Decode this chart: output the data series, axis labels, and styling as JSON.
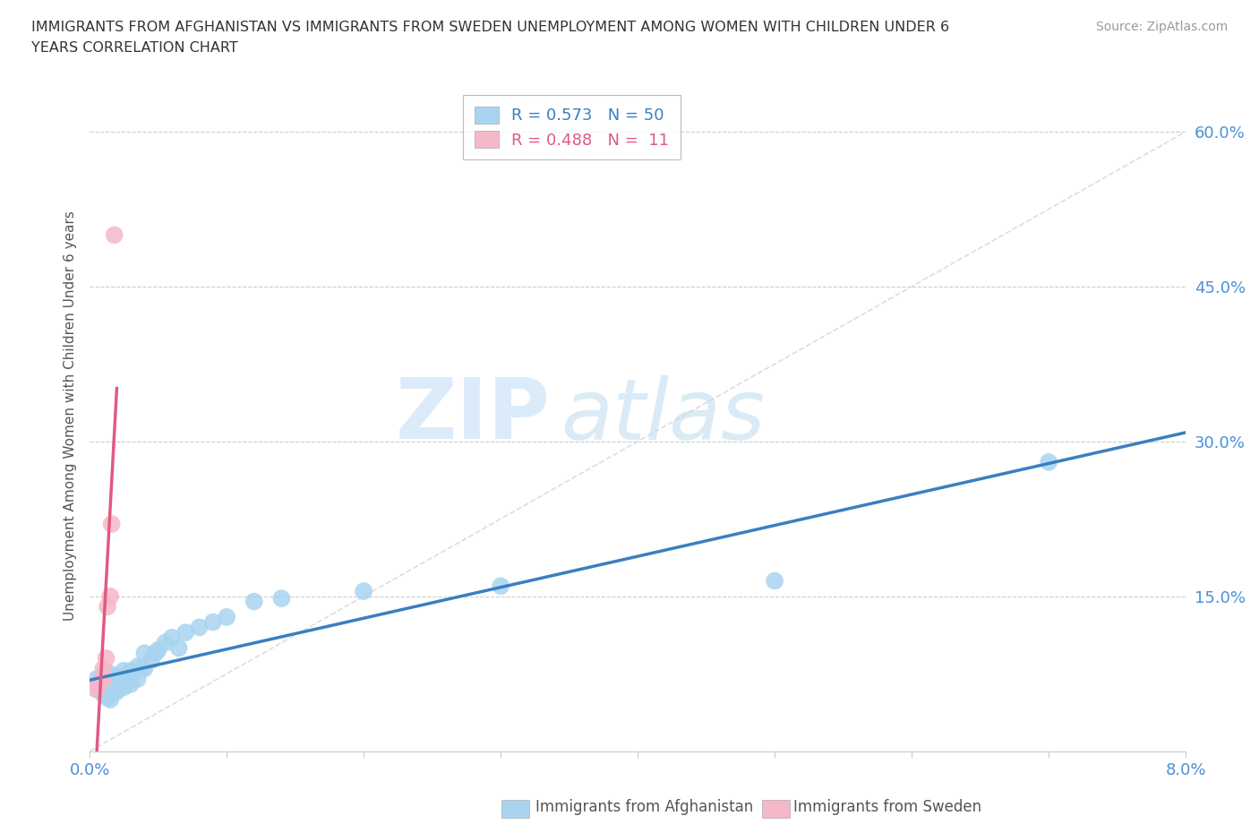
{
  "title_line1": "IMMIGRANTS FROM AFGHANISTAN VS IMMIGRANTS FROM SWEDEN UNEMPLOYMENT AMONG WOMEN WITH CHILDREN UNDER 6",
  "title_line2": "YEARS CORRELATION CHART",
  "source": "Source: ZipAtlas.com",
  "ylabel": "Unemployment Among Women with Children Under 6 years",
  "xlim": [
    0.0,
    0.08
  ],
  "ylim": [
    0.0,
    0.65
  ],
  "r_afghanistan": 0.573,
  "n_afghanistan": 50,
  "r_sweden": 0.488,
  "n_sweden": 11,
  "color_afghanistan": "#a8d4f0",
  "color_sweden": "#f5b8c8",
  "line_color_afghanistan": "#3a7fc1",
  "line_color_sweden": "#e05a80",
  "afghanistan_x": [
    0.0005,
    0.0005,
    0.0008,
    0.001,
    0.001,
    0.001,
    0.0012,
    0.0012,
    0.0013,
    0.0013,
    0.0015,
    0.0015,
    0.0015,
    0.0015,
    0.0017,
    0.0018,
    0.0018,
    0.002,
    0.002,
    0.002,
    0.0022,
    0.0022,
    0.0025,
    0.0025,
    0.0025,
    0.0028,
    0.003,
    0.003,
    0.0032,
    0.0035,
    0.0035,
    0.0038,
    0.004,
    0.004,
    0.0045,
    0.0048,
    0.005,
    0.0055,
    0.006,
    0.0065,
    0.007,
    0.008,
    0.009,
    0.01,
    0.012,
    0.014,
    0.02,
    0.03,
    0.05,
    0.07
  ],
  "afghanistan_y": [
    0.06,
    0.07,
    0.065,
    0.055,
    0.065,
    0.075,
    0.058,
    0.068,
    0.052,
    0.062,
    0.05,
    0.058,
    0.068,
    0.075,
    0.06,
    0.058,
    0.068,
    0.058,
    0.065,
    0.072,
    0.062,
    0.072,
    0.062,
    0.068,
    0.078,
    0.07,
    0.065,
    0.078,
    0.075,
    0.07,
    0.082,
    0.08,
    0.08,
    0.095,
    0.088,
    0.095,
    0.098,
    0.105,
    0.11,
    0.1,
    0.115,
    0.12,
    0.125,
    0.13,
    0.145,
    0.148,
    0.155,
    0.16,
    0.165,
    0.28
  ],
  "sweden_x": [
    0.0005,
    0.0006,
    0.0007,
    0.0008,
    0.001,
    0.001,
    0.0012,
    0.0013,
    0.0015,
    0.0016,
    0.0018
  ],
  "sweden_y": [
    0.06,
    0.065,
    0.065,
    0.068,
    0.07,
    0.08,
    0.09,
    0.14,
    0.15,
    0.22,
    0.5
  ],
  "background_color": "#ffffff",
  "grid_color": "#cccccc",
  "ref_line_color": "#dddddd"
}
